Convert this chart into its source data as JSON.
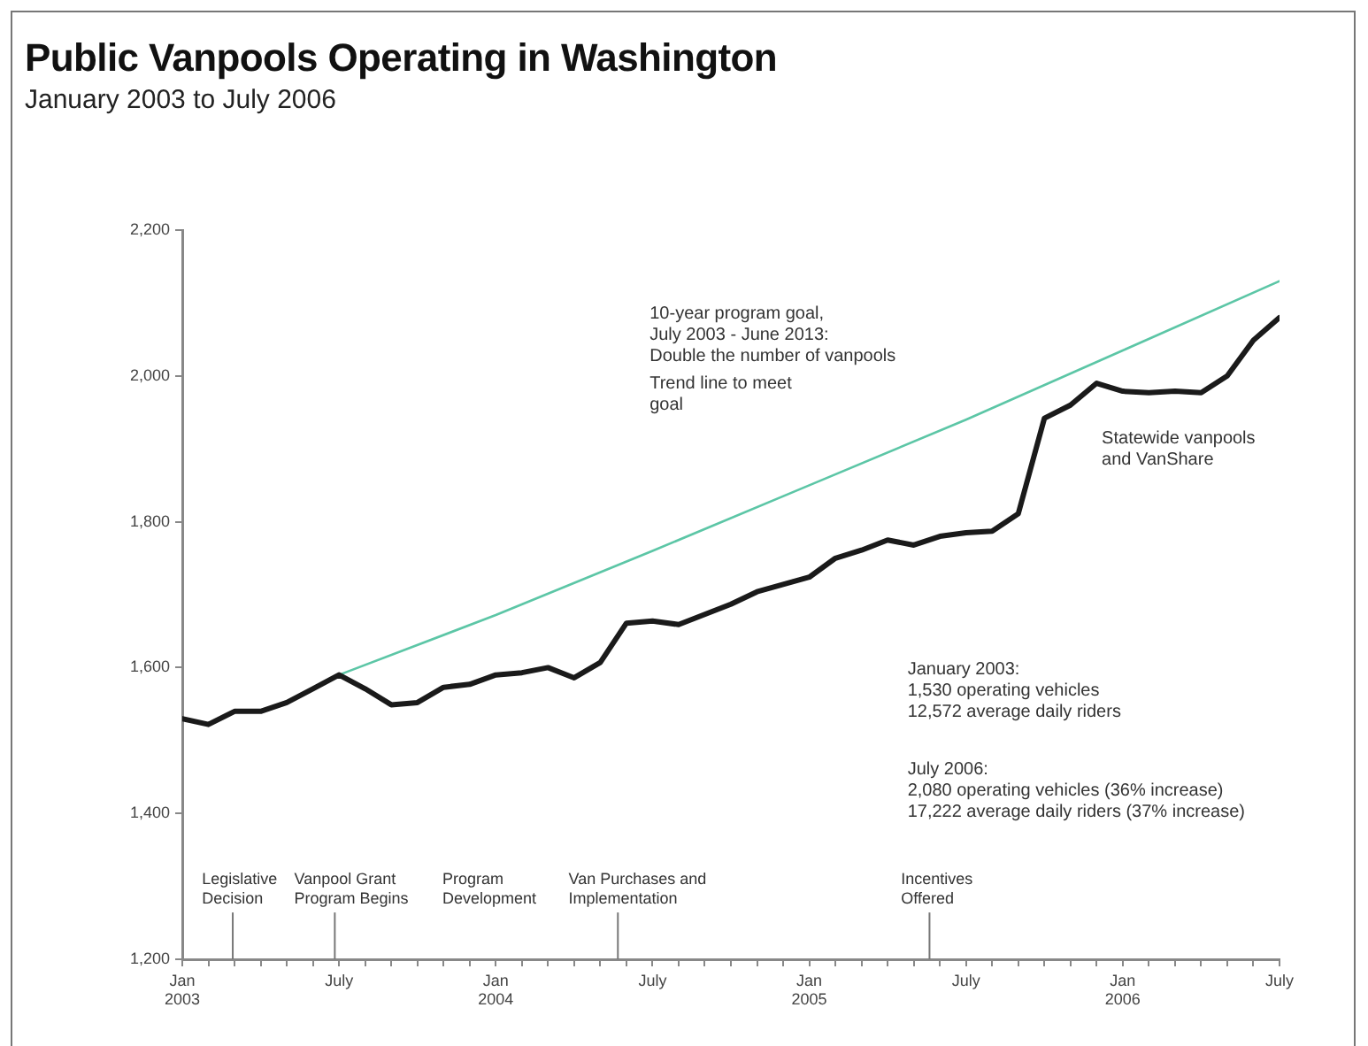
{
  "chart_data": {
    "type": "line",
    "title": "Public Vanpools Operating in Washington",
    "subtitle": "January 2003 to July 2006",
    "xlim": [
      "2003-01",
      "2006-07"
    ],
    "xticks": [
      {
        "value": "2003-01",
        "label": "Jan 2003"
      },
      {
        "value": "2003-02",
        "label": null
      },
      {
        "value": "2003-03",
        "label": null
      },
      {
        "value": "2003-04",
        "label": null
      },
      {
        "value": "2003-05",
        "label": null
      },
      {
        "value": "2003-06",
        "label": null
      },
      {
        "value": "2003-07",
        "label": "July"
      },
      {
        "value": "2003-08",
        "label": null
      },
      {
        "value": "2003-09",
        "label": null
      },
      {
        "value": "2003-10",
        "label": null
      },
      {
        "value": "2003-11",
        "label": null
      },
      {
        "value": "2003-12",
        "label": null
      },
      {
        "value": "2004-01",
        "label": "Jan 2004"
      },
      {
        "value": "2004-02",
        "label": null
      },
      {
        "value": "2004-03",
        "label": null
      },
      {
        "value": "2004-04",
        "label": null
      },
      {
        "value": "2004-05",
        "label": null
      },
      {
        "value": "2004-06",
        "label": null
      },
      {
        "value": "2004-07",
        "label": "July"
      },
      {
        "value": "2004-08",
        "label": null
      },
      {
        "value": "2004-09",
        "label": null
      },
      {
        "value": "2004-10",
        "label": null
      },
      {
        "value": "2004-11",
        "label": null
      },
      {
        "value": "2004-12",
        "label": null
      },
      {
        "value": "2005-01",
        "label": "Jan 2005"
      },
      {
        "value": "2005-02",
        "label": null
      },
      {
        "value": "2005-03",
        "label": null
      },
      {
        "value": "2005-04",
        "label": null
      },
      {
        "value": "2005-05",
        "label": null
      },
      {
        "value": "2005-06",
        "label": null
      },
      {
        "value": "2005-07",
        "label": "July"
      },
      {
        "value": "2005-08",
        "label": null
      },
      {
        "value": "2005-09",
        "label": null
      },
      {
        "value": "2005-10",
        "label": null
      },
      {
        "value": "2005-11",
        "label": null
      },
      {
        "value": "2005-12",
        "label": null
      },
      {
        "value": "2006-01",
        "label": "Jan 2006"
      },
      {
        "value": "2006-02",
        "label": null
      },
      {
        "value": "2006-03",
        "label": null
      },
      {
        "value": "2006-04",
        "label": null
      },
      {
        "value": "2006-05",
        "label": null
      },
      {
        "value": "2006-06",
        "label": null
      },
      {
        "value": "2006-07",
        "label": "July"
      }
    ],
    "ylim": [
      1200,
      2200
    ],
    "yticks": [
      {
        "value": 1200,
        "label": "1,200"
      },
      {
        "value": 1400,
        "label": "1,400"
      },
      {
        "value": 1600,
        "label": "1,600"
      },
      {
        "value": 1800,
        "label": "1,800"
      },
      {
        "value": 2000,
        "label": "2,000"
      },
      {
        "value": 2200,
        "label": "2,200"
      }
    ],
    "grid": false,
    "legend": false,
    "marker": "none",
    "series": [
      {
        "color": "#1a1a1a",
        "x": [
          "2003-01",
          "2003-02",
          "2003-03",
          "2003-04",
          "2003-05",
          "2003-06",
          "2003-07",
          "2003-08",
          "2003-09",
          "2003-10",
          "2003-11",
          "2003-12",
          "2004-01",
          "2004-02",
          "2004-03",
          "2004-04",
          "2004-05",
          "2004-06",
          "2004-07",
          "2004-08",
          "2004-09",
          "2004-10",
          "2004-11",
          "2004-12",
          "2005-01",
          "2005-02",
          "2005-03",
          "2005-04",
          "2005-05",
          "2005-06",
          "2005-07",
          "2005-08",
          "2005-09",
          "2005-10",
          "2005-11",
          "2005-12",
          "2006-01",
          "2006-02",
          "2006-03",
          "2006-04",
          "2006-05",
          "2006-06",
          "2006-07"
        ],
        "values": [
          1530,
          1522,
          1540,
          1540,
          1552,
          1571,
          1590,
          1571,
          1549,
          1552,
          1573,
          1577,
          1590,
          1593,
          1600,
          1586,
          1607,
          1661,
          1664,
          1659,
          1673,
          1687,
          1704,
          1714,
          1724,
          1750,
          1761,
          1775,
          1768,
          1780,
          1785,
          1787,
          1811,
          1942,
          1960,
          1990,
          1979,
          1977,
          1979,
          1977,
          2000,
          2049,
          2080
        ]
      },
      {
        "type": "line",
        "color": "#5cc6a6",
        "x": [
          "2003-07",
          "2004-01",
          "2004-07",
          "2005-01",
          "2005-07",
          "2006-01",
          "2006-07"
        ],
        "values": [
          1590,
          1672,
          1760,
          1850,
          1940,
          2035,
          2130
        ]
      }
    ],
    "annotations": [
      "10-year program goal,\nJuly 2003 - June 2013:\nDouble the number of vanpools",
      "Trend line to meet\ngoal",
      "Statewide vanpools\nand VanShare",
      "January 2003:\n1,530 operating vehicles\n12,572 average daily riders",
      "July 2006:\n2,080 operating vehicles (36% increase)\n17,222 average daily riders (37% increase)",
      "Legislative\nDecision",
      "Vanpool Grant\nProgram Begins",
      "Program\nDevelopment",
      "Van Purchases and\nImplementation",
      "Incentives\nOffered"
    ]
  }
}
